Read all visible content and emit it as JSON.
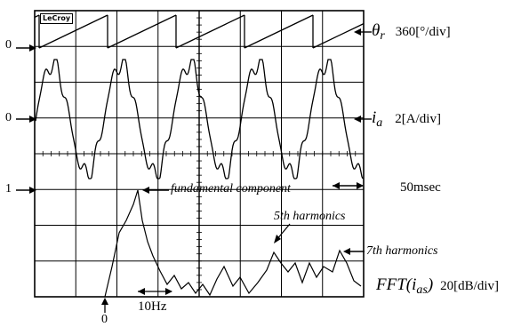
{
  "oscilloscope_brand": "LeCroy",
  "channels": {
    "theta": {
      "symbol": "θ",
      "subscript": "r",
      "scale": "360[°/div]",
      "zero_marker": "0"
    },
    "current": {
      "symbol": "i",
      "subscript": "a",
      "scale": "2[A/div]",
      "zero_marker": "0"
    },
    "fft": {
      "symbol_prefix": "FFT(",
      "symbol_var": "i",
      "symbol_sub": "as",
      "symbol_suffix": ")",
      "scale": "20[dB/div]",
      "level_marker": "1"
    }
  },
  "time_scale": "50msec",
  "freq_scale": "10Hz",
  "freq_origin": "0",
  "annotations": {
    "fundamental": "fundamental component",
    "fifth": "5th harmonics",
    "seventh": "7th harmonics"
  }
}
